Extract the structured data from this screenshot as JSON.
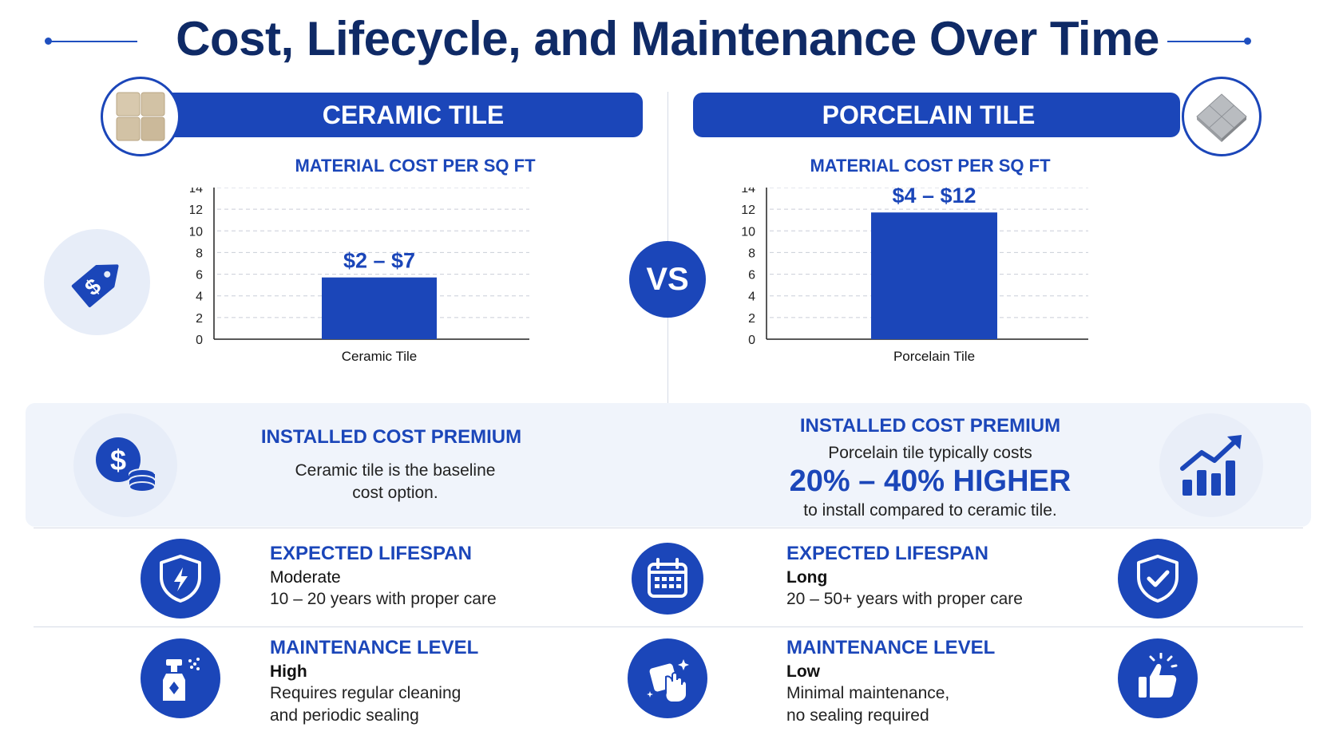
{
  "title": "Cost, Lifecycle, and Maintenance Over Time",
  "vs_label": "VS",
  "ceramic": {
    "banner": "CERAMIC TILE",
    "cost_title": "MATERIAL COST PER SQ FT",
    "premium_title": "INSTALLED COST PREMIUM",
    "premium_line1": "Ceramic tile is the baseline",
    "premium_line2": "cost option.",
    "lifespan_title": "EXPECTED LIFESPAN",
    "lifespan_level": "Moderate",
    "lifespan_desc": "10 – 20 years with proper care",
    "maint_title": "MAINTENANCE LEVEL",
    "maint_level": "High",
    "maint_line1": "Requires regular cleaning",
    "maint_line2": "and periodic sealing"
  },
  "porcelain": {
    "banner": "PORCELAIN TILE",
    "cost_title": "MATERIAL COST PER SQ FT",
    "premium_title": "INSTALLED COST PREMIUM",
    "premium_line1": "Porcelain tile typically costs",
    "premium_highlight": "20% – 40% HIGHER",
    "premium_line2": "to install compared to ceramic tile.",
    "lifespan_title": "EXPECTED LIFESPAN",
    "lifespan_level": "Long",
    "lifespan_desc": "20 – 50+ years with proper care",
    "maint_title": "MAINTENANCE LEVEL",
    "maint_level": "Low",
    "maint_line1": "Minimal maintenance,",
    "maint_line2": "no sealing required"
  },
  "colors": {
    "primary": "#1b46b9",
    "title": "#0f2a66",
    "soft": "#e7edf8",
    "band": "#f0f4fb"
  },
  "icons": [
    "price-tag-icon",
    "dollar-coins-icon",
    "growth-chart-icon",
    "shield-bolt-icon",
    "calendar-icon",
    "shield-check-icon",
    "spray-bottle-icon",
    "cleaning-cloth-icon",
    "thumbs-up-icon"
  ],
  "chart_data": [
    {
      "type": "bar",
      "title": "MATERIAL COST PER SQ FT",
      "categories": [
        "Ceramic Tile"
      ],
      "values": [
        5.7
      ],
      "data_labels": [
        "$2 – $7"
      ],
      "ylim": [
        0,
        14
      ],
      "yticks": [
        0,
        2,
        4,
        6,
        8,
        10,
        12,
        14
      ],
      "grid": true,
      "color": "#1b46b9"
    },
    {
      "type": "bar",
      "title": "MATERIAL COST PER SQ FT",
      "categories": [
        "Porcelain Tile"
      ],
      "values": [
        11.7
      ],
      "data_labels": [
        "$4 – $12"
      ],
      "ylim": [
        0,
        14
      ],
      "yticks": [
        0,
        2,
        4,
        6,
        8,
        10,
        12,
        14
      ],
      "grid": true,
      "color": "#1b46b9"
    }
  ]
}
